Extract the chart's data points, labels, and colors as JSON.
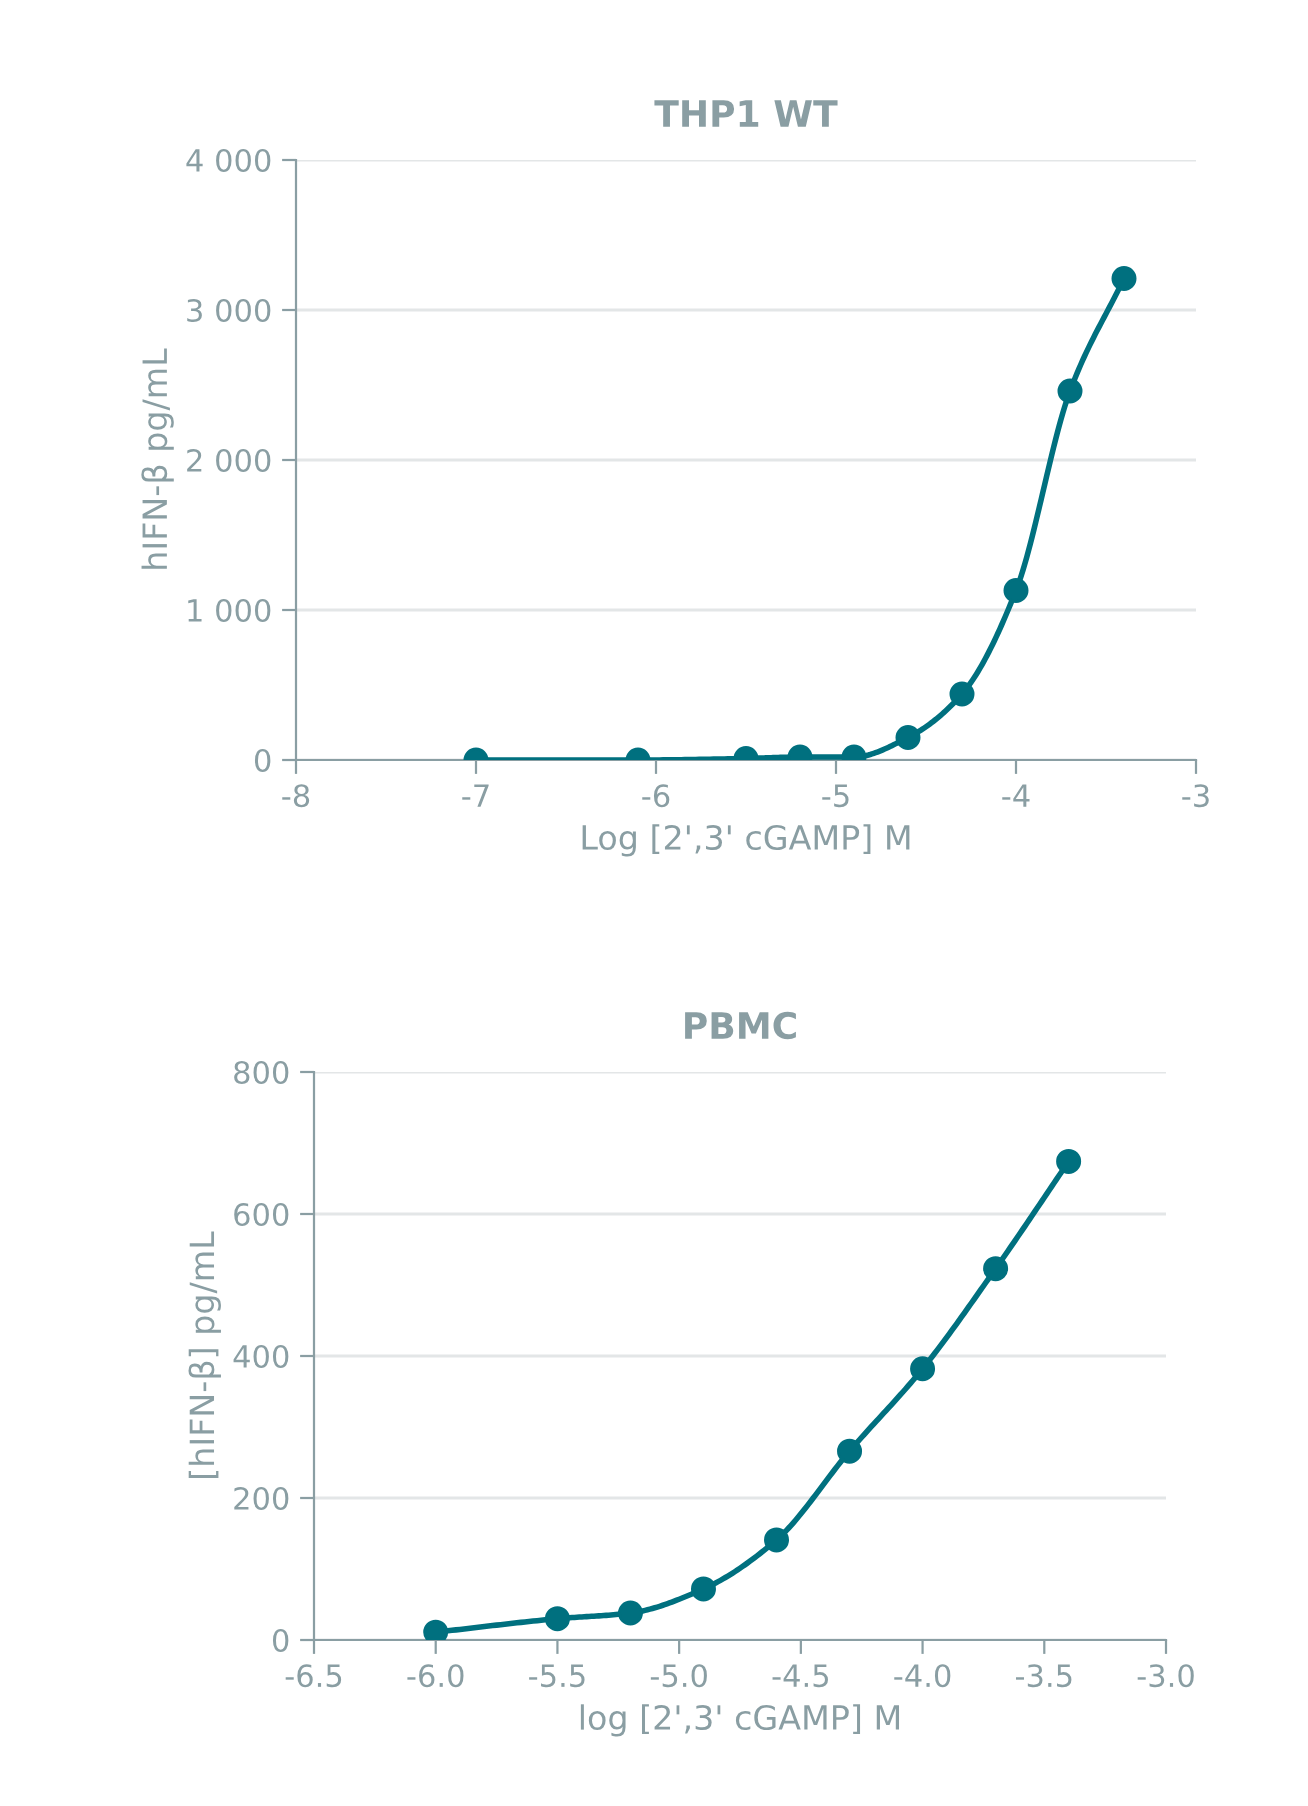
{
  "chart_data": [
    {
      "type": "line",
      "title": "THP1 WT",
      "xlabel": "Log [2',3' cGAMP] M",
      "ylabel": "hIFN-β pg/mL",
      "x": [
        -7,
        -6.1,
        -5.5,
        -5.2,
        -4.9,
        -4.6,
        -4.3,
        -4.0,
        -3.7,
        -3.4
      ],
      "series": [
        {
          "color": "#00707f",
          "values": [
            0,
            0,
            10,
            20,
            20,
            150,
            440,
            1130,
            2460,
            3210
          ]
        }
      ],
      "xlim": [
        -8,
        -3
      ],
      "xticks": [
        -8,
        -7,
        -6,
        -5,
        -4,
        -3
      ],
      "ylim": [
        0,
        4000
      ],
      "yticks": [
        0,
        {
          "value": 1000,
          "label": "1 000"
        },
        {
          "value": 2000,
          "label": "2 000"
        },
        {
          "value": 3000,
          "label": "3 000"
        },
        {
          "value": 4000,
          "label": "4 000"
        }
      ],
      "grid": "y",
      "marker": "circle",
      "line_style": "solid"
    },
    {
      "type": "line",
      "title": "PBMC",
      "xlabel": "log [2',3' cGAMP] M",
      "ylabel": "[hIFN-β] pg/mL",
      "x": [
        -6.0,
        -5.5,
        -5.2,
        -4.9,
        -4.6,
        -4.3,
        -4.0,
        -3.7,
        -3.4
      ],
      "series": [
        {
          "color": "#00707f",
          "values": [
            11,
            30,
            38,
            72,
            141,
            266,
            382,
            523,
            674
          ]
        }
      ],
      "xlim": [
        -6.5,
        -3.0
      ],
      "xticks": [
        -6.5,
        {
          "value": -6,
          "label": "-6.0"
        },
        -5.5,
        {
          "value": -5,
          "label": "-5.0"
        },
        -4.5,
        {
          "value": -4,
          "label": "-4.0"
        },
        -3.5,
        {
          "value": -3,
          "label": "-3.0"
        }
      ],
      "ylim": [
        0,
        800
      ],
      "yticks": [
        0,
        200,
        400,
        600,
        800
      ],
      "grid": "y",
      "marker": "circle",
      "line_style": "solid"
    }
  ]
}
